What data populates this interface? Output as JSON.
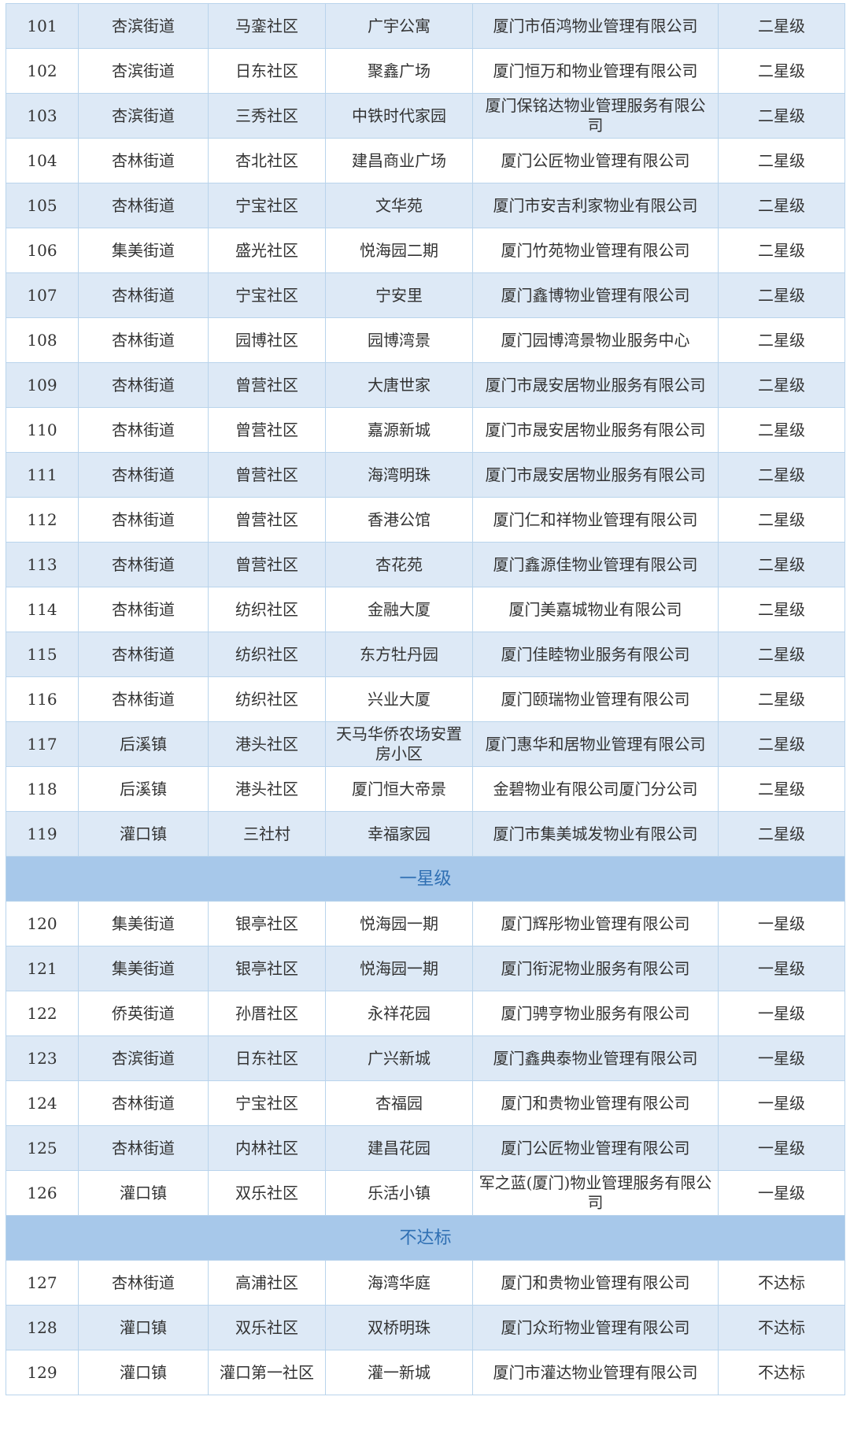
{
  "table": {
    "groups": [
      {
        "rows": [
          [
            "101",
            "杏滨街道",
            "马銮社区",
            "广宇公寓",
            "厦门市佰鸿物业管理有限公司",
            "二星级"
          ],
          [
            "102",
            "杏滨街道",
            "日东社区",
            "聚鑫广场",
            "厦门恒万和物业管理有限公司",
            "二星级"
          ],
          [
            "103",
            "杏滨街道",
            "三秀社区",
            "中铁时代家园",
            "厦门保铭达物业管理服务有限公司",
            "二星级"
          ],
          [
            "104",
            "杏林街道",
            "杏北社区",
            "建昌商业广场",
            "厦门公匠物业管理有限公司",
            "二星级"
          ],
          [
            "105",
            "杏林街道",
            "宁宝社区",
            "文华苑",
            "厦门市安吉利家物业有限公司",
            "二星级"
          ],
          [
            "106",
            "集美街道",
            "盛光社区",
            "悦海园二期",
            "厦门竹苑物业管理有限公司",
            "二星级"
          ],
          [
            "107",
            "杏林街道",
            "宁宝社区",
            "宁安里",
            "厦门鑫博物业管理有限公司",
            "二星级"
          ],
          [
            "108",
            "杏林街道",
            "园博社区",
            "园博湾景",
            "厦门园博湾景物业服务中心",
            "二星级"
          ],
          [
            "109",
            "杏林街道",
            "曾营社区",
            "大唐世家",
            "厦门市晟安居物业服务有限公司",
            "二星级"
          ],
          [
            "110",
            "杏林街道",
            "曾营社区",
            "嘉源新城",
            "厦门市晟安居物业服务有限公司",
            "二星级"
          ],
          [
            "111",
            "杏林街道",
            "曾营社区",
            "海湾明珠",
            "厦门市晟安居物业服务有限公司",
            "二星级"
          ],
          [
            "112",
            "杏林街道",
            "曾营社区",
            "香港公馆",
            "厦门仁和祥物业管理有限公司",
            "二星级"
          ],
          [
            "113",
            "杏林街道",
            "曾营社区",
            "杏花苑",
            "厦门鑫源佳物业管理有限公司",
            "二星级"
          ],
          [
            "114",
            "杏林街道",
            "纺织社区",
            "金融大厦",
            "厦门美嘉城物业有限公司",
            "二星级"
          ],
          [
            "115",
            "杏林街道",
            "纺织社区",
            "东方牡丹园",
            "厦门佳睦物业服务有限公司",
            "二星级"
          ],
          [
            "116",
            "杏林街道",
            "纺织社区",
            "兴业大厦",
            "厦门颐瑞物业管理有限公司",
            "二星级"
          ],
          [
            "117",
            "后溪镇",
            "港头社区",
            "天马华侨农场安置房小区",
            "厦门惠华和居物业管理有限公司",
            "二星级"
          ],
          [
            "118",
            "后溪镇",
            "港头社区",
            "厦门恒大帝景",
            "金碧物业有限公司厦门分公司",
            "二星级"
          ],
          [
            "119",
            "灌口镇",
            "三社村",
            "幸福家园",
            "厦门市集美城发物业有限公司",
            "二星级"
          ]
        ]
      },
      {
        "title": "一星级",
        "rows": [
          [
            "120",
            "集美街道",
            "银亭社区",
            "悦海园一期",
            "厦门辉彤物业管理有限公司",
            "一星级"
          ],
          [
            "121",
            "集美街道",
            "银亭社区",
            "悦海园一期",
            "厦门衔泥物业服务有限公司",
            "一星级"
          ],
          [
            "122",
            "侨英街道",
            "孙厝社区",
            "永祥花园",
            "厦门骋亨物业服务有限公司",
            "一星级"
          ],
          [
            "123",
            "杏滨街道",
            "日东社区",
            "广兴新城",
            "厦门鑫典泰物业管理有限公司",
            "一星级"
          ],
          [
            "124",
            "杏林街道",
            "宁宝社区",
            "杏福园",
            "厦门和贵物业管理有限公司",
            "一星级"
          ],
          [
            "125",
            "杏林街道",
            "内林社区",
            "建昌花园",
            "厦门公匠物业管理有限公司",
            "一星级"
          ],
          [
            "126",
            "灌口镇",
            "双乐社区",
            "乐活小镇",
            "军之蓝(厦门)物业管理服务有限公司",
            "一星级"
          ]
        ]
      },
      {
        "title": "不达标",
        "rows": [
          [
            "127",
            "杏林街道",
            "高浦社区",
            "海湾华庭",
            "厦门和贵物业管理有限公司",
            "不达标"
          ],
          [
            "128",
            "灌口镇",
            "双乐社区",
            "双桥明珠",
            "厦门众珩物业管理有限公司",
            "不达标"
          ],
          [
            "129",
            "灌口镇",
            "灌口第一社区",
            "灌一新城",
            "厦门市灌达物业管理有限公司",
            "不达标"
          ]
        ]
      }
    ]
  }
}
